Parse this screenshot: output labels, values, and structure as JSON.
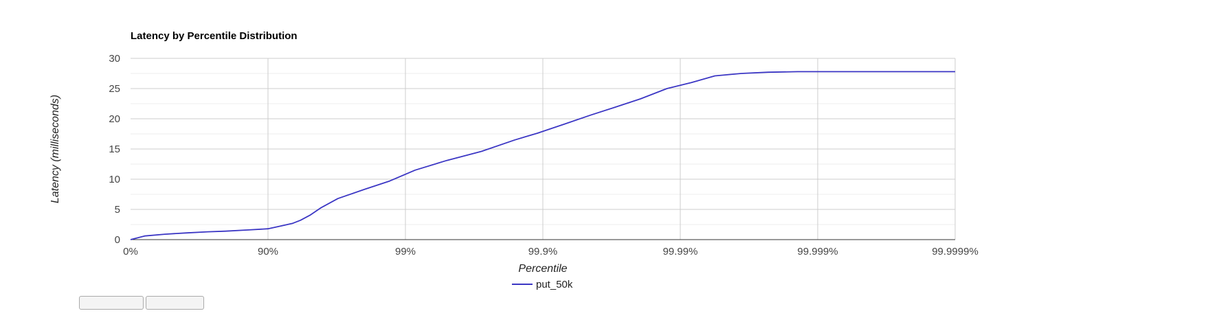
{
  "chart_data": {
    "type": "line",
    "title": "Latency by Percentile Distribution",
    "xlabel": "Percentile",
    "ylabel": "Latency (milliseconds)",
    "x_scale": "log-inverse-percentile",
    "x_ticks": [
      "0%",
      "90%",
      "99%",
      "99.9%",
      "99.99%",
      "99.999%",
      "99.9999%"
    ],
    "ylim": [
      0,
      30
    ],
    "y_ticks": [
      0,
      5,
      10,
      15,
      20,
      25,
      30
    ],
    "grid": true,
    "legend_position": "bottom",
    "series": [
      {
        "name": "put_50k",
        "color": "#3b36c4",
        "points": [
          [
            0,
            0
          ],
          [
            21,
            0.6
          ],
          [
            43.8,
            0.9
          ],
          [
            60.2,
            1.1
          ],
          [
            72.5,
            1.3
          ],
          [
            79.6,
            1.4
          ],
          [
            86.1,
            1.6
          ],
          [
            90,
            1.8
          ],
          [
            92.1,
            2.3
          ],
          [
            93.4,
            2.7
          ],
          [
            94.2,
            3.2
          ],
          [
            95.1,
            4.1
          ],
          [
            95.9,
            5.3
          ],
          [
            96.9,
            6.8
          ],
          [
            98.0,
            8.3
          ],
          [
            98.7,
            9.7
          ],
          [
            99.15,
            11.5
          ],
          [
            99.5,
            13.1
          ],
          [
            99.72,
            14.6
          ],
          [
            99.84,
            16.5
          ],
          [
            99.89,
            17.6
          ],
          [
            99.93,
            19.1
          ],
          [
            99.955,
            20.6
          ],
          [
            99.971,
            22.0
          ],
          [
            99.9805,
            23.3
          ],
          [
            99.9875,
            25.0
          ],
          [
            99.9917,
            26.0
          ],
          [
            99.9944,
            27.1
          ],
          [
            99.9964,
            27.5
          ],
          [
            99.9977,
            27.7
          ],
          [
            99.9986,
            27.8
          ],
          [
            99.9991,
            27.8
          ],
          [
            99.99945,
            27.8
          ],
          [
            99.99965,
            27.8
          ],
          [
            99.9999,
            27.8
          ]
        ]
      }
    ]
  }
}
